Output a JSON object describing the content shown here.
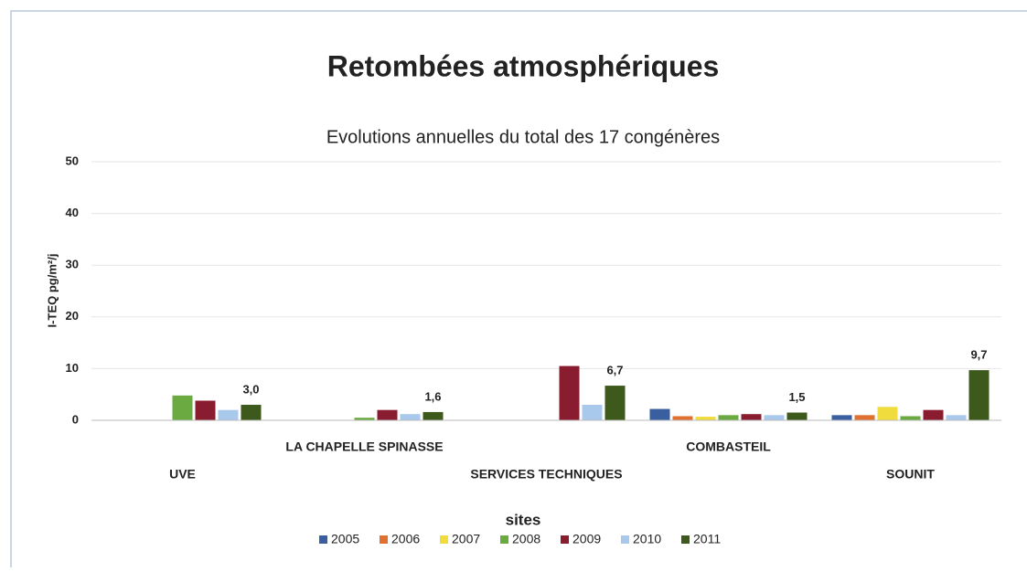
{
  "chart_data": {
    "type": "bar",
    "title": "Retombées atmosphériques",
    "subtitle": "Evolutions annuelles du total des 17 congénères",
    "y_label": "I-TEQ pg/m²/j",
    "x_label": "sites",
    "categories": [
      "UVE",
      "LA CHAPELLE SPINASSE",
      "SERVICES TECHNIQUES",
      "COMBASTEIL",
      "SOUNIT"
    ],
    "series": [
      {
        "name": "2005",
        "color": "#3a5fa0",
        "values": [
          null,
          null,
          null,
          2.2,
          1.0
        ]
      },
      {
        "name": "2006",
        "color": "#e07030",
        "values": [
          null,
          null,
          null,
          0.8,
          1.0
        ]
      },
      {
        "name": "2007",
        "color": "#f0dc3c",
        "values": [
          null,
          null,
          null,
          0.7,
          2.6
        ]
      },
      {
        "name": "2008",
        "color": "#6aaa40",
        "values": [
          4.8,
          0.5,
          null,
          1.0,
          0.8
        ]
      },
      {
        "name": "2009",
        "color": "#8a1c30",
        "values": [
          3.8,
          2.0,
          10.5,
          1.2,
          2.0
        ]
      },
      {
        "name": "2010",
        "color": "#a8c8ec",
        "values": [
          2.0,
          1.2,
          3.0,
          1.0,
          1.0
        ]
      },
      {
        "name": "2011",
        "color": "#3d5a1c",
        "values": [
          3.0,
          1.6,
          6.7,
          1.5,
          9.7
        ],
        "value_labels": [
          "3,0",
          "1,6",
          "6,7",
          "1,5",
          "9,7"
        ]
      }
    ],
    "ylim": [
      0,
      50
    ],
    "yticks": [
      0,
      10,
      20,
      30,
      40,
      50
    ],
    "grid": true,
    "legend": "bottom"
  }
}
